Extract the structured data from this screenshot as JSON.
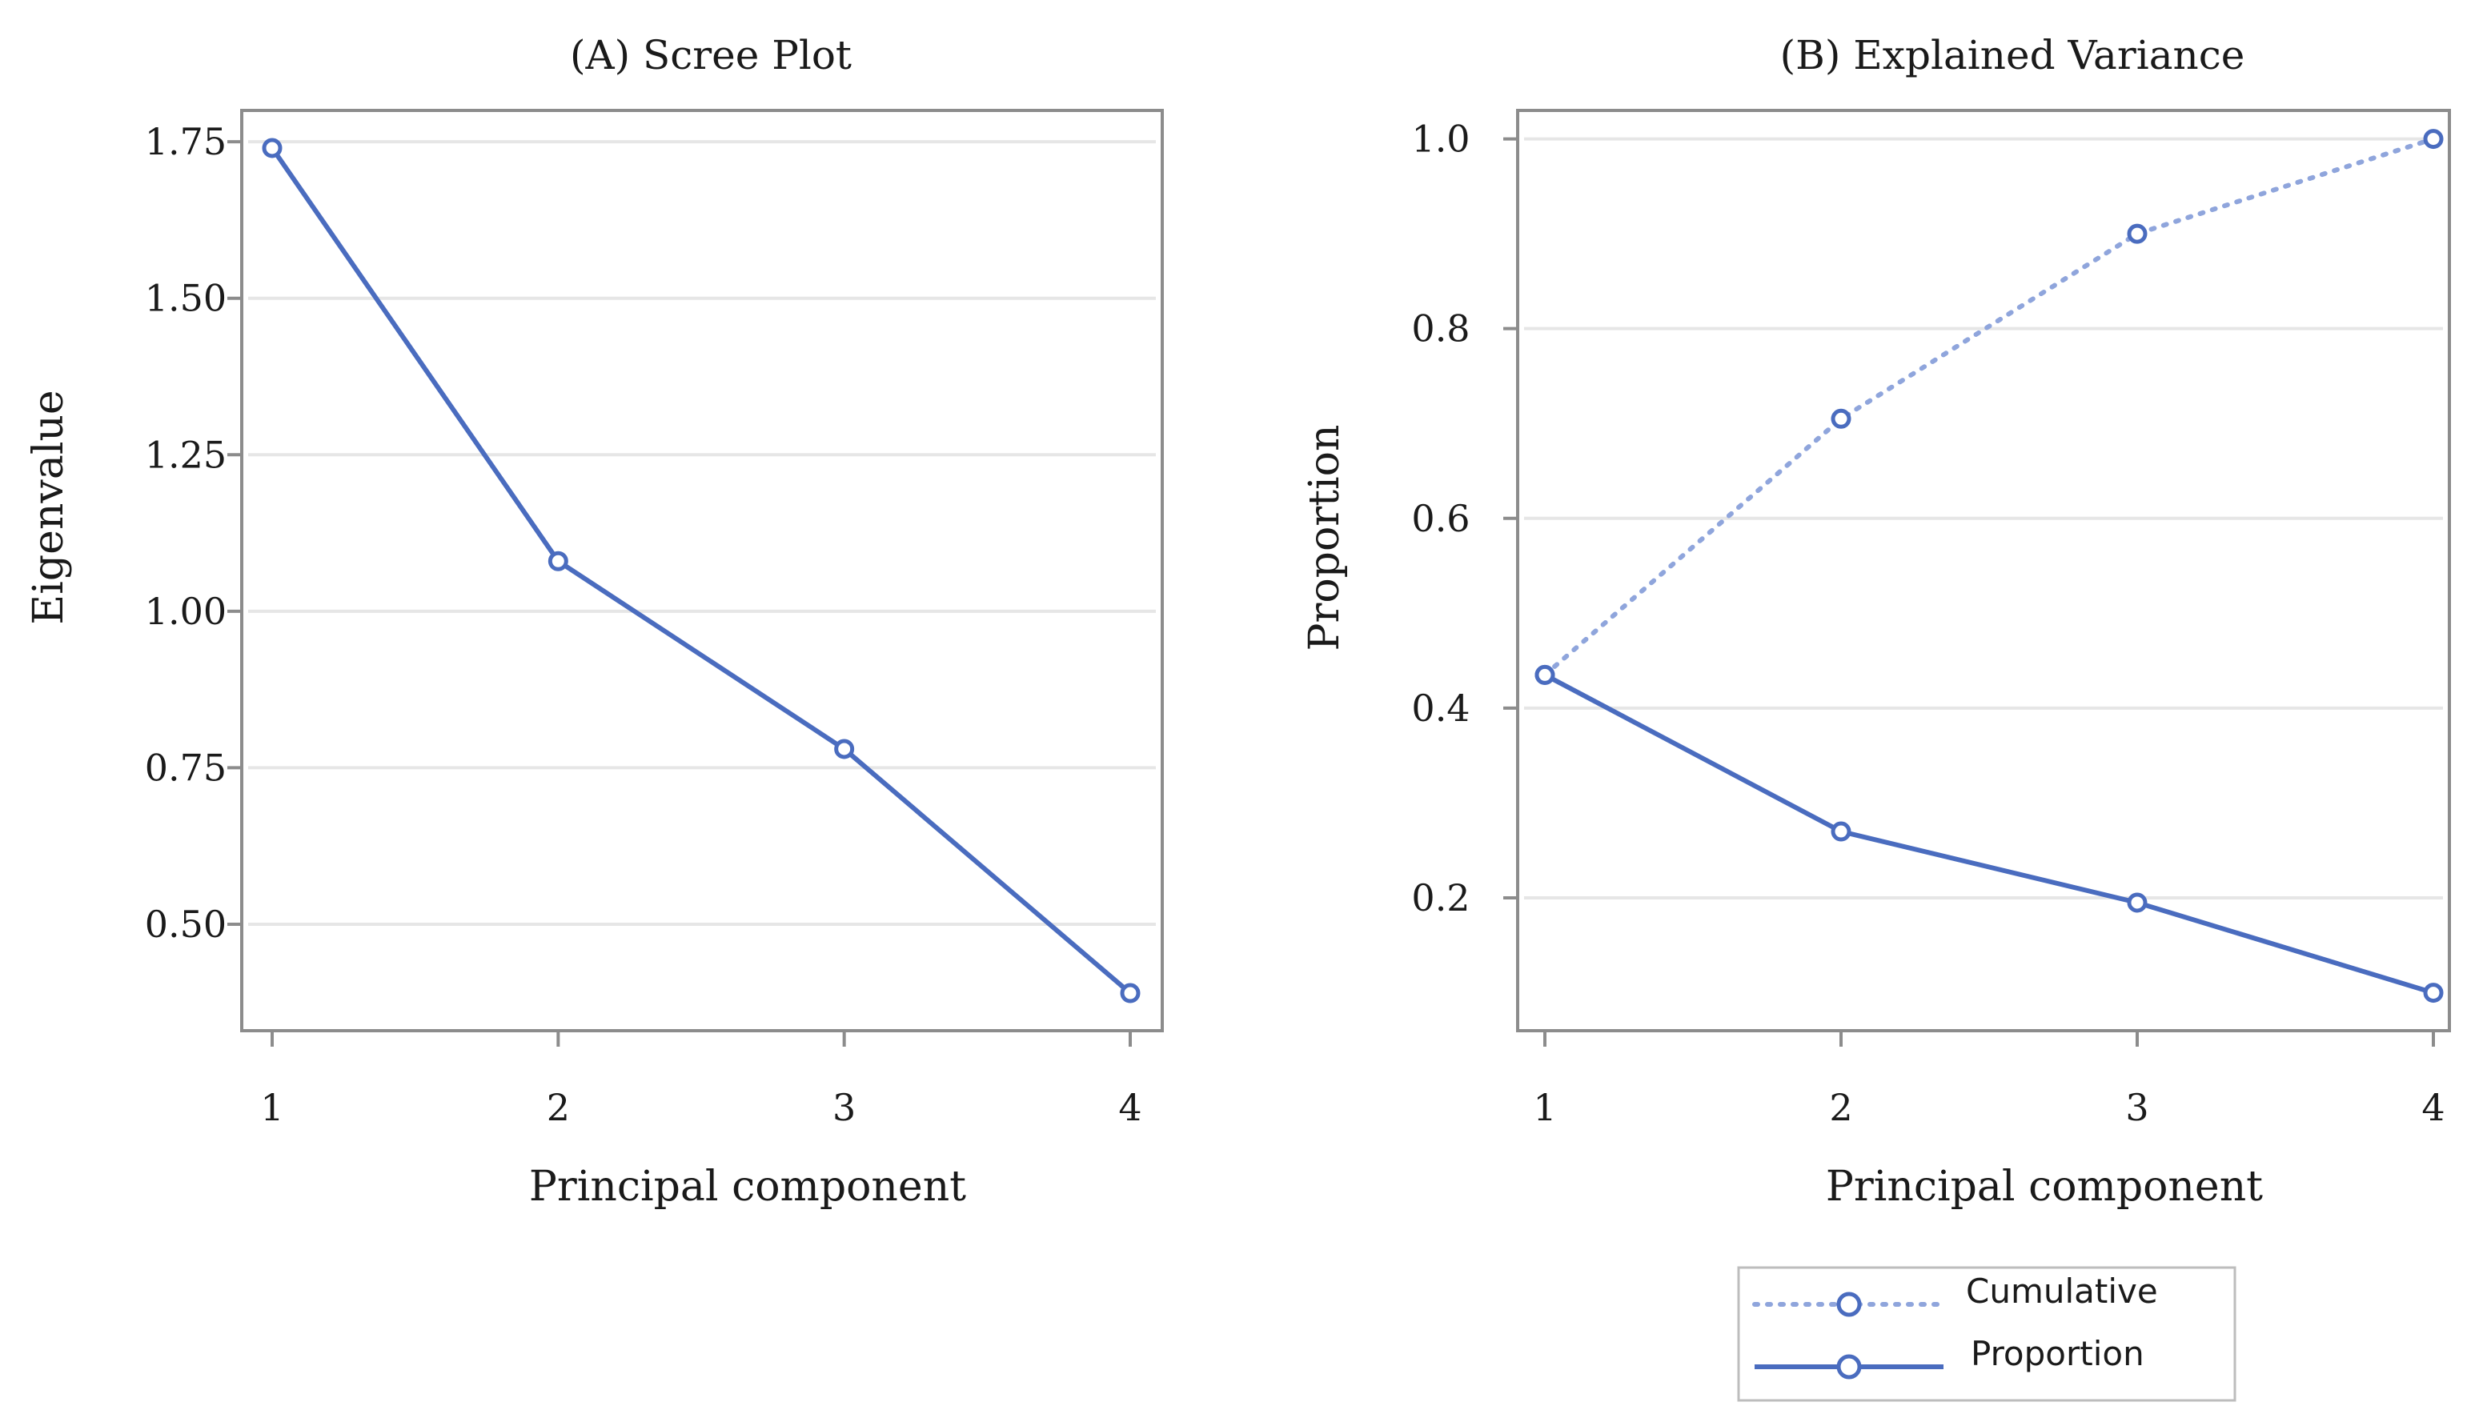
{
  "colors": {
    "series": "#4a6cbf",
    "series_light": "#8fa5dc"
  },
  "chart_data": [
    {
      "type": "line",
      "title": "(A) Scree Plot",
      "xlabel": "Principal component",
      "ylabel": "Eigenvalue",
      "x": [
        1,
        2,
        3,
        4
      ],
      "xticks": [
        "1",
        "2",
        "3",
        "4"
      ],
      "yticks": [
        0.5,
        0.75,
        1.0,
        1.25,
        1.5,
        1.75
      ],
      "ytick_labels": [
        "0.50",
        "0.75",
        "1.00",
        "1.25",
        "1.50",
        "1.75"
      ],
      "ylim": [
        0.33,
        1.8
      ],
      "grid": true,
      "series": [
        {
          "name": "Eigenvalue",
          "values": [
            1.74,
            1.08,
            0.78,
            0.39
          ],
          "style": "solid"
        }
      ]
    },
    {
      "type": "line",
      "title": "(B) Explained Variance",
      "xlabel": "Principal component",
      "ylabel": "Proportion",
      "x": [
        1,
        2,
        3,
        4
      ],
      "xticks": [
        "1",
        "2",
        "3",
        "4"
      ],
      "yticks": [
        0.2,
        0.4,
        0.6,
        0.8,
        1.0
      ],
      "ytick_labels": [
        "0.2",
        "0.4",
        "0.6",
        "0.8",
        "1.0"
      ],
      "ylim": [
        0.06,
        1.03
      ],
      "grid": true,
      "legend_position": "bottom-right, below plot",
      "series": [
        {
          "name": "Cumulative",
          "values": [
            0.435,
            0.705,
            0.9,
            1.0
          ],
          "style": "dotted"
        },
        {
          "name": "Proportion",
          "values": [
            0.435,
            0.27,
            0.195,
            0.1
          ],
          "style": "solid"
        }
      ]
    }
  ]
}
